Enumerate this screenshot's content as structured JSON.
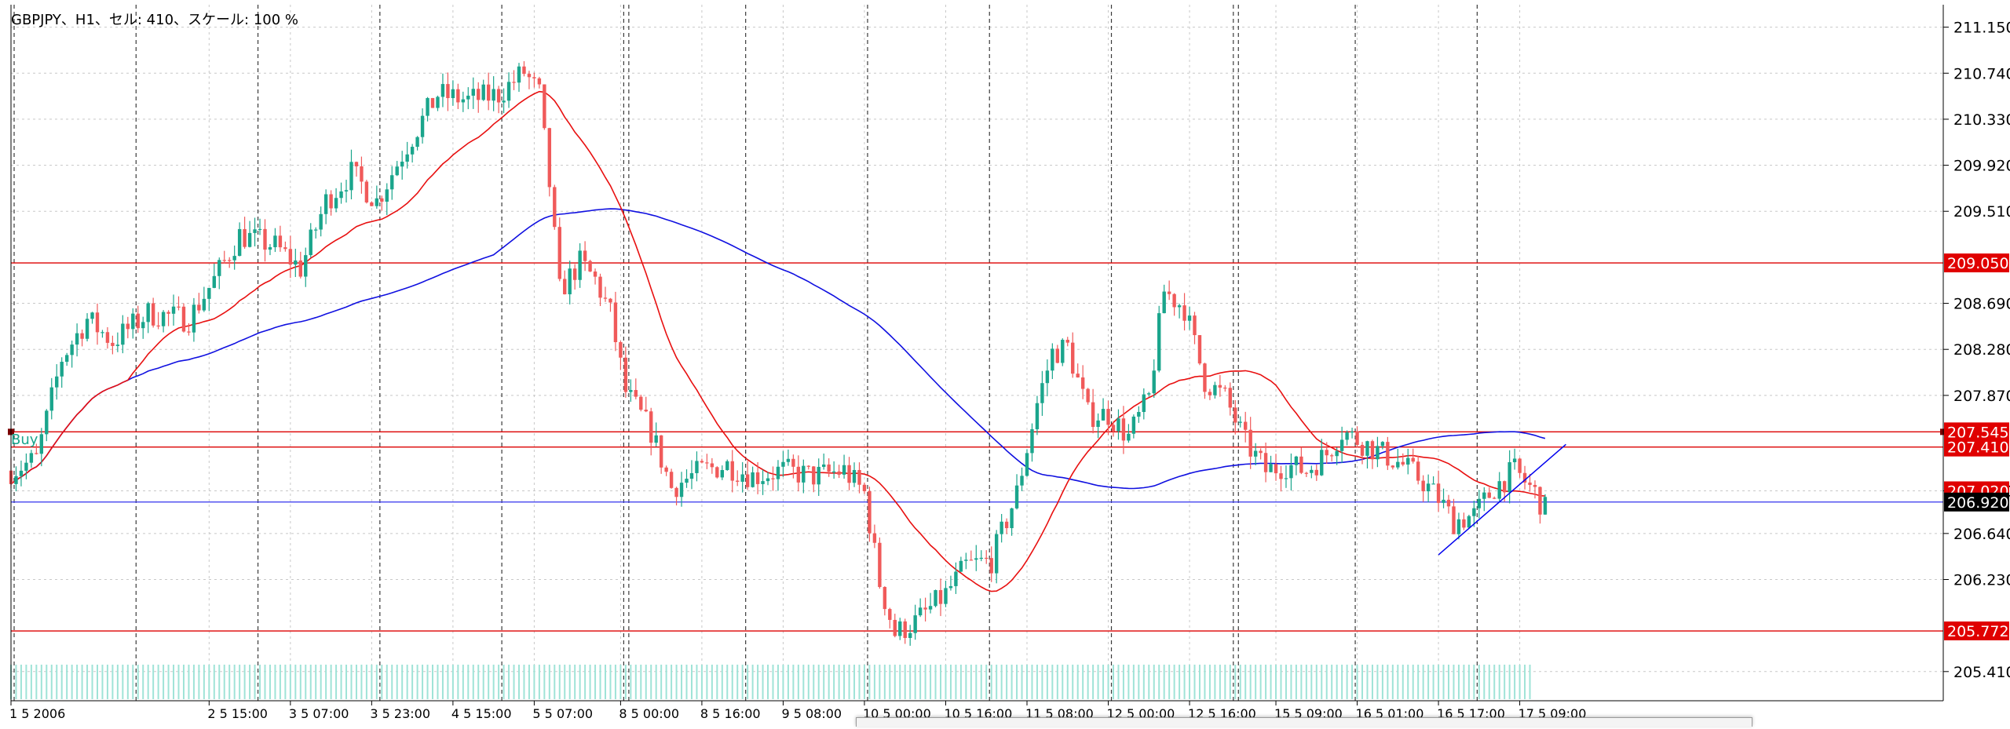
{
  "header": {
    "title": "GBPJPY、H1、セル: 410、スケール: 100 %"
  },
  "buy_label": "Buy",
  "colors": {
    "bull": "#1aa58c",
    "bear": "#f05a5a",
    "ma_fast": "#e81010",
    "ma_slow": "#1010e0",
    "level_line": "#dd0000",
    "current_line": "#3333ee",
    "current_label_bg": "#000000",
    "level_label_bg": "#e00000",
    "volume": "#9fe3d7",
    "trendline": "#0000ee",
    "grid": "#c8c8c8",
    "separator": "#3a3a3a"
  },
  "chart_data": {
    "type": "candlestick",
    "symbol": "GBPJPY",
    "timeframe": "H1",
    "y_range": [
      205.15,
      211.35
    ],
    "price_ticks": [
      "211.150",
      "210.740",
      "210.330",
      "209.920",
      "209.510",
      "209.050",
      "208.690",
      "208.280",
      "207.870",
      "207.545",
      "207.410",
      "207.020",
      "206.920",
      "206.640",
      "206.230",
      "205.772",
      "205.410"
    ],
    "regular_ticks": [
      211.15,
      210.74,
      210.33,
      209.92,
      209.51,
      208.69,
      208.28,
      207.87,
      207.02,
      206.64,
      206.23,
      205.41
    ],
    "time_labels": [
      {
        "label": "1 5 2006",
        "i": 0
      },
      {
        "label": "2 5 15:00",
        "i": 39
      },
      {
        "label": "3 5 07:00",
        "i": 55
      },
      {
        "label": "3 5 23:00",
        "i": 71
      },
      {
        "label": "4 5 15:00",
        "i": 87
      },
      {
        "label": "5 5 07:00",
        "i": 103
      },
      {
        "label": "8 5 00:00",
        "i": 120
      },
      {
        "label": "8 5 16:00",
        "i": 136
      },
      {
        "label": "9 5 08:00",
        "i": 152
      },
      {
        "label": "10 5 00:00",
        "i": 168
      },
      {
        "label": "10 5 16:00",
        "i": 184
      },
      {
        "label": "11 5 08:00",
        "i": 200
      },
      {
        "label": "12 5 00:00",
        "i": 216
      },
      {
        "label": "12 5 16:00",
        "i": 232
      },
      {
        "label": "15 5 09:00",
        "i": 249
      },
      {
        "label": "16 5 01:00",
        "i": 265
      },
      {
        "label": "16 5 17:00",
        "i": 281
      },
      {
        "label": "17 5 09:00",
        "i": 297
      }
    ],
    "day_separator_indices": [
      0,
      24,
      48,
      72,
      96,
      120,
      121,
      144,
      168,
      192,
      216,
      240,
      241,
      264,
      288
    ],
    "horizontal_levels": [
      209.05,
      207.545,
      207.41,
      205.772
    ],
    "current_price": 206.92,
    "current_price_label": "206.920",
    "hidden_price_label": "207.020",
    "trendline": {
      "from": {
        "i": 281,
        "p": 206.45
      },
      "to": {
        "i": 303,
        "p": 207.35
      }
    },
    "price_path_anchors": [
      [
        0,
        207.2
      ],
      [
        5,
        207.3
      ],
      [
        10,
        208.2
      ],
      [
        15,
        208.55
      ],
      [
        20,
        208.35
      ],
      [
        27,
        208.6
      ],
      [
        35,
        208.55
      ],
      [
        40,
        208.9
      ],
      [
        45,
        209.3
      ],
      [
        52,
        209.2
      ],
      [
        57,
        209.0
      ],
      [
        62,
        209.6
      ],
      [
        67,
        209.85
      ],
      [
        72,
        209.6
      ],
      [
        78,
        210.1
      ],
      [
        84,
        210.55
      ],
      [
        90,
        210.5
      ],
      [
        96,
        210.55
      ],
      [
        101,
        210.75
      ],
      [
        104,
        210.55
      ],
      [
        106,
        209.75
      ],
      [
        108,
        208.8
      ],
      [
        112,
        209.05
      ],
      [
        115,
        208.9
      ],
      [
        118,
        208.6
      ],
      [
        121,
        207.9
      ],
      [
        126,
        207.55
      ],
      [
        130,
        207.05
      ],
      [
        136,
        207.2
      ],
      [
        141,
        207.25
      ],
      [
        146,
        207.15
      ],
      [
        152,
        207.2
      ],
      [
        158,
        207.15
      ],
      [
        164,
        207.2
      ],
      [
        168,
        207.0
      ],
      [
        171,
        206.2
      ],
      [
        174,
        205.75
      ],
      [
        178,
        205.85
      ],
      [
        184,
        206.1
      ],
      [
        188,
        206.35
      ],
      [
        193,
        206.4
      ],
      [
        198,
        207.0
      ],
      [
        202,
        207.8
      ],
      [
        205,
        208.25
      ],
      [
        208,
        208.3
      ],
      [
        212,
        207.7
      ],
      [
        216,
        207.7
      ],
      [
        220,
        207.5
      ],
      [
        224,
        207.85
      ],
      [
        227,
        208.8
      ],
      [
        231,
        208.65
      ],
      [
        235,
        208.0
      ],
      [
        239,
        207.85
      ],
      [
        243,
        207.45
      ],
      [
        247,
        207.2
      ],
      [
        251,
        207.25
      ],
      [
        255,
        207.2
      ],
      [
        259,
        207.35
      ],
      [
        262,
        207.55
      ],
      [
        266,
        207.45
      ],
      [
        270,
        207.35
      ],
      [
        274,
        207.25
      ],
      [
        278,
        207.1
      ],
      [
        281,
        206.95
      ],
      [
        284,
        206.75
      ],
      [
        288,
        206.8
      ],
      [
        292,
        207.05
      ],
      [
        296,
        207.2
      ],
      [
        300,
        207.0
      ],
      [
        302,
        206.85
      ]
    ],
    "sma_fast_period": 24,
    "sma_slow_period": 96,
    "bar_count": 303
  }
}
